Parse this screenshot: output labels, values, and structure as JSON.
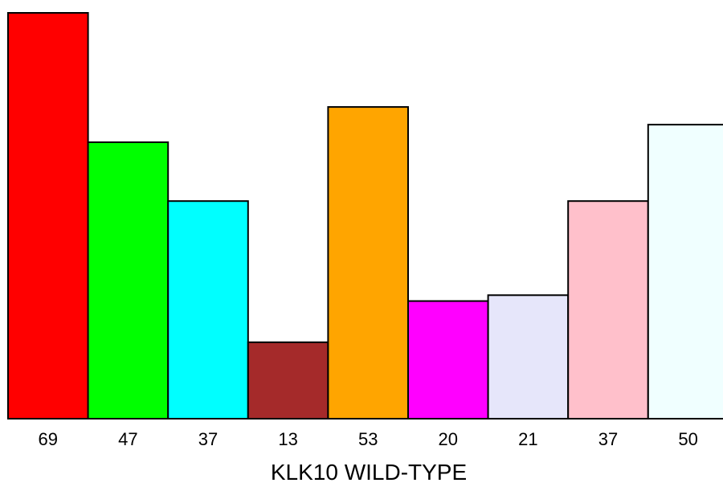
{
  "chart_data": {
    "type": "bar",
    "xlabel": "KLK10 WILD-TYPE",
    "categories": [
      "69",
      "47",
      "37",
      "13",
      "53",
      "20",
      "21",
      "37",
      "50"
    ],
    "values": [
      69,
      47,
      37,
      13,
      53,
      20,
      21,
      37,
      50
    ],
    "colors": [
      "#ff0000",
      "#00ff00",
      "#00ffff",
      "#a52a2a",
      "#ffa500",
      "#ff00ff",
      "#e6e6fa",
      "#ffc0cb",
      "#f0ffff"
    ],
    "ylim": [
      0,
      69
    ],
    "grid": false,
    "legend": "none"
  }
}
